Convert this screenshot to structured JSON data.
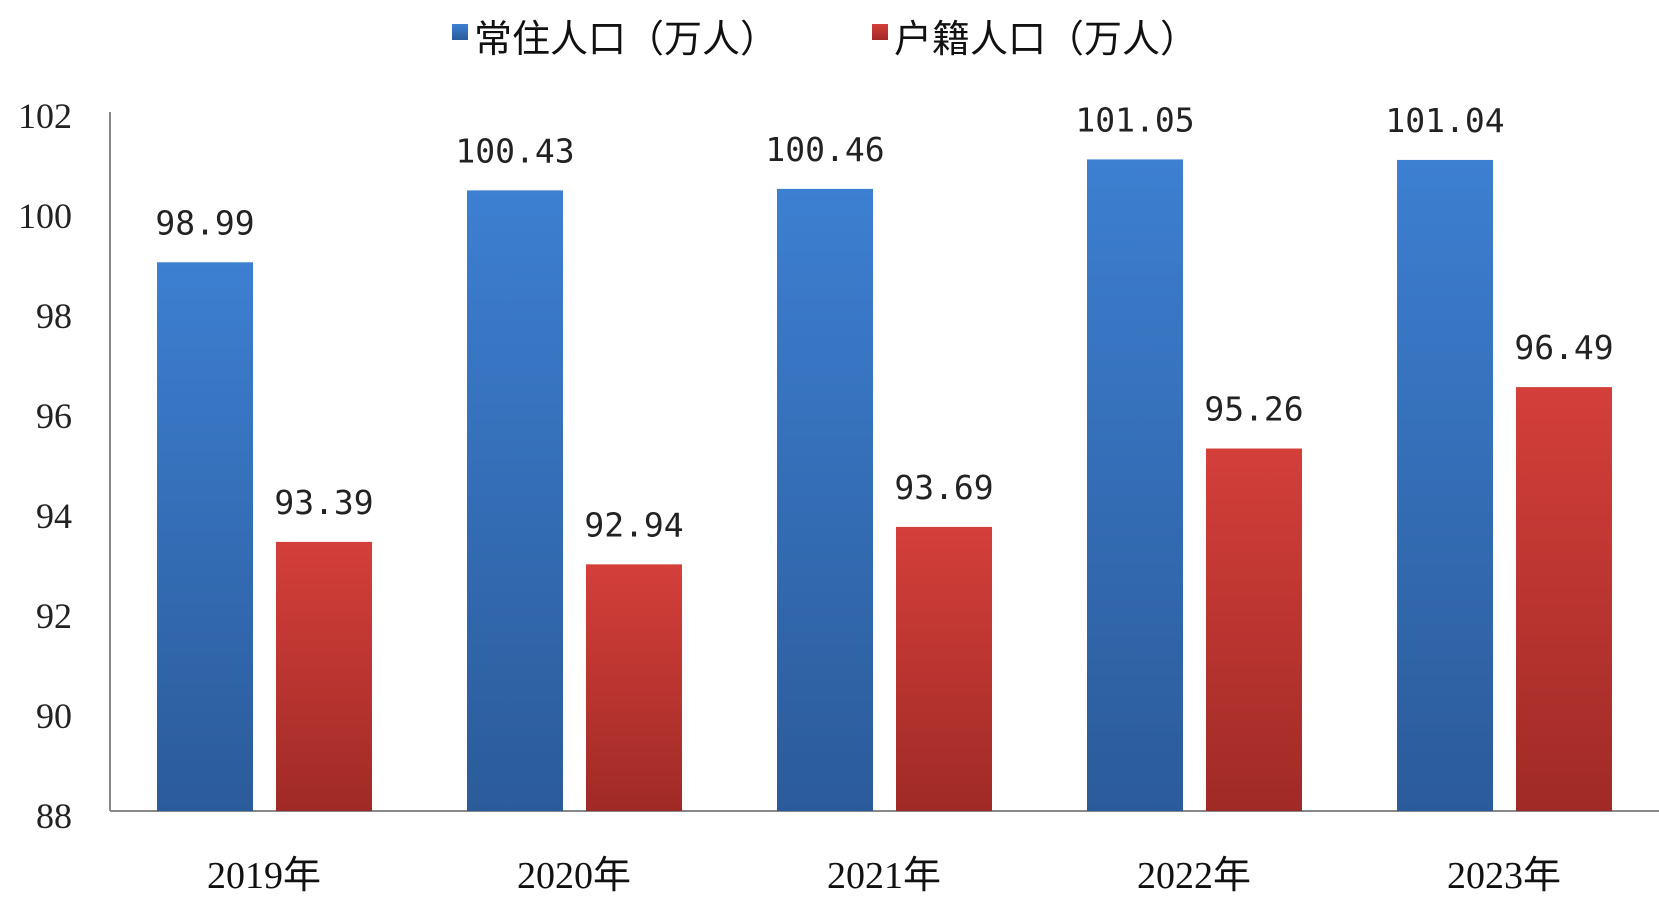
{
  "chart_data": {
    "type": "bar",
    "categories": [
      "2019年",
      "2020年",
      "2021年",
      "2022年",
      "2023年"
    ],
    "series": [
      {
        "name": "常住人口（万人）",
        "values": [
          98.99,
          100.43,
          100.46,
          101.05,
          101.04
        ],
        "color": "#3a78c8"
      },
      {
        "name": "户籍人口（万人）",
        "values": [
          93.39,
          92.94,
          93.69,
          95.26,
          96.49
        ],
        "color": "#c93a36"
      }
    ],
    "data_labels": [
      [
        "98.99",
        "100.43",
        "100.46",
        "101.05",
        "101.04"
      ],
      [
        "93.39",
        "92.94",
        "93.69",
        "95.26",
        "96.49"
      ]
    ],
    "y_ticks": [
      "102",
      "100",
      "98",
      "96",
      "94",
      "92",
      "90",
      "88"
    ],
    "ylim": [
      88,
      102
    ],
    "legend_position": "top-center",
    "grid": false
  }
}
